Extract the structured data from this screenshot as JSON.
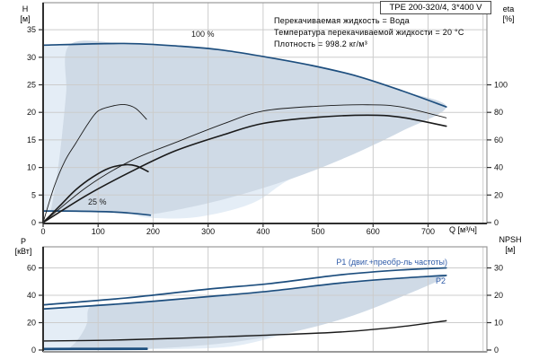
{
  "title_box": {
    "label": "TPE 200-320/4, 3*400 V"
  },
  "info_lines": [
    "Перекачиваемая жидкость = Вода",
    "Температура перекачиваемой жидкости = 20 °C",
    "Плотность = 998.2 кг/м³"
  ],
  "colors": {
    "curve_blue": "#1d4e7e",
    "curve_black": "#1a1a1a",
    "label_blue": "#2f5ba8",
    "region_light": "#e4edf6",
    "region_dark": "#cfdae6",
    "grid": "#cccccc",
    "axis_dark": "#2f2f2f",
    "axis_gray": "#9a9a9a",
    "tick_text": "#111111"
  },
  "chart_data": [
    {
      "type": "line",
      "name": "qh-eta-chart",
      "xlabel": "Q [м³/ч]",
      "xlim": [
        0,
        807
      ],
      "x_ticks": [
        0,
        100,
        200,
        300,
        400,
        500,
        600,
        700
      ],
      "x_grid": [
        100,
        200,
        300,
        400,
        500,
        600,
        700,
        800
      ],
      "left_axis": {
        "label_top": "H",
        "label_unit": "[м]",
        "ticks": [
          0,
          5,
          10,
          15,
          20,
          25,
          30,
          35
        ],
        "lim": [
          0,
          40
        ]
      },
      "right_axis": {
        "label_top": "eta",
        "label_unit": "[%]",
        "ticks": [
          0,
          20,
          40,
          60,
          80,
          100
        ],
        "lim": [
          0,
          160
        ]
      },
      "series": [
        {
          "name": "head-100pct",
          "label": "100 %",
          "axis": "left",
          "style": "blue",
          "width": 1.7,
          "points": [
            [
              0,
              32.2
            ],
            [
              147,
              32.5
            ],
            [
              250,
              32.0
            ],
            [
              326,
              31.3
            ],
            [
              408,
              30.0
            ],
            [
              489,
              28.5
            ],
            [
              570,
              26.6
            ],
            [
              653,
              23.9
            ],
            [
              733,
              21.0
            ]
          ]
        },
        {
          "name": "head-25pct",
          "label": "25 %",
          "axis": "left",
          "style": "blue",
          "width": 1.7,
          "points": [
            [
              0,
              2.1
            ],
            [
              60,
              2.08
            ],
            [
              120,
              1.95
            ],
            [
              160,
              1.7
            ],
            [
              195,
              1.35
            ]
          ]
        },
        {
          "name": "eta-pump-100pct",
          "axis": "right",
          "style": "black",
          "width": 0.9,
          "points": [
            [
              0,
              0
            ],
            [
              80,
              26
            ],
            [
              160,
              45
            ],
            [
              240,
              58
            ],
            [
              330,
              72
            ],
            [
              400,
              81
            ],
            [
              500,
              84.5
            ],
            [
              590,
              85.5
            ],
            [
              650,
              84
            ],
            [
              733,
              76
            ]
          ]
        },
        {
          "name": "eta-total-100pct",
          "axis": "right",
          "style": "black",
          "width": 1.6,
          "points": [
            [
              0,
              0
            ],
            [
              80,
              20
            ],
            [
              160,
              37
            ],
            [
              240,
              52
            ],
            [
              330,
              64
            ],
            [
              400,
              72
            ],
            [
              500,
              76.5
            ],
            [
              590,
              78
            ],
            [
              650,
              76.5
            ],
            [
              733,
              70
            ]
          ]
        },
        {
          "name": "eta-pump-25pct",
          "axis": "right",
          "style": "black",
          "width": 0.9,
          "points": [
            [
              0,
              0
            ],
            [
              20,
              26
            ],
            [
              40,
              45
            ],
            [
              60,
              58
            ],
            [
              82,
              72
            ],
            [
              100,
              81
            ],
            [
              125,
              84.5
            ],
            [
              147,
              85.7
            ],
            [
              168,
              83
            ],
            [
              188,
              75
            ]
          ]
        },
        {
          "name": "eta-total-25pct",
          "axis": "right",
          "style": "black",
          "width": 1.6,
          "points": [
            [
              0,
              0
            ],
            [
              30,
              12
            ],
            [
              60,
              24
            ],
            [
              90,
              33
            ],
            [
              120,
              39.5
            ],
            [
              150,
              42
            ],
            [
              170,
              41
            ],
            [
              191,
              37
            ]
          ]
        }
      ],
      "regions": [
        {
          "name": "envelope-light",
          "axis": "left",
          "points": [
            [
              0,
              32.2
            ],
            [
              147,
              32.5
            ],
            [
              250,
              32.0
            ],
            [
              326,
              31.3
            ],
            [
              408,
              30.0
            ],
            [
              489,
              28.5
            ],
            [
              570,
              26.6
            ],
            [
              653,
              23.9
            ],
            [
              733,
              21.0
            ],
            [
              650,
              16.5
            ],
            [
              550,
              11.8
            ],
            [
              450,
              7.9
            ],
            [
              380,
              3.5
            ],
            [
              280,
              1.0
            ],
            [
              191,
              0.9
            ],
            [
              150,
              1.8
            ],
            [
              100,
              2.0
            ],
            [
              50,
              2.08
            ],
            [
              0,
              2.1
            ]
          ]
        },
        {
          "name": "envelope-dark",
          "axis": "left",
          "points": [
            [
              14,
              2.05
            ],
            [
              20,
              5.4
            ],
            [
              28,
              10.5
            ],
            [
              35,
              16.5
            ],
            [
              42,
              23.7
            ],
            [
              49,
              32.3
            ],
            [
              147,
              32.5
            ],
            [
              250,
              32.0
            ],
            [
              326,
              31.3
            ],
            [
              408,
              30.0
            ],
            [
              489,
              28.5
            ],
            [
              570,
              26.6
            ],
            [
              653,
              23.9
            ],
            [
              733,
              21.0
            ],
            [
              650,
              16.5
            ],
            [
              550,
              11.8
            ],
            [
              450,
              7.9
            ],
            [
              350,
              4.8
            ],
            [
              270,
              2.85
            ],
            [
              191,
              1.45
            ],
            [
              150,
              1.8
            ],
            [
              100,
              2.0
            ],
            [
              50,
              2.05
            ]
          ]
        }
      ]
    },
    {
      "type": "line",
      "name": "power-npsh-chart",
      "xlabel": "",
      "xlim": [
        0,
        807
      ],
      "x_ticks": [],
      "x_grid": [
        100,
        200,
        300,
        400,
        500,
        600,
        700,
        800
      ],
      "left_axis": {
        "label_top": "P",
        "label_unit": "[кВт]",
        "ticks": [
          0,
          20,
          40,
          60
        ],
        "lim": [
          0,
          77
        ]
      },
      "right_axis": {
        "label_top": "NPSH",
        "label_unit": "[м]",
        "ticks": [
          0,
          10,
          20,
          30
        ],
        "lim": [
          0,
          38.5
        ]
      },
      "series": [
        {
          "name": "p1-100pct",
          "label": "P1 (двиг.+преобр-ль частоты)",
          "axis": "left",
          "style": "blue",
          "width": 1.7,
          "points": [
            [
              0,
              33
            ],
            [
              150,
              38
            ],
            [
              300,
              44.5
            ],
            [
              411,
              48.5
            ],
            [
              542,
              55
            ],
            [
              650,
              58.5
            ],
            [
              733,
              60
            ]
          ]
        },
        {
          "name": "p2-100pct",
          "label": "P2",
          "axis": "left",
          "style": "blue",
          "width": 1.7,
          "points": [
            [
              0,
              30
            ],
            [
              150,
              34
            ],
            [
              300,
              39
            ],
            [
              411,
              43
            ],
            [
              542,
              49
            ],
            [
              650,
              52.5
            ],
            [
              733,
              54.5
            ]
          ]
        },
        {
          "name": "p1-25pct",
          "axis": "left",
          "style": "blue",
          "width": 1.8,
          "points": [
            [
              0,
              1.05
            ],
            [
              100,
              1.15
            ],
            [
              189,
              1.25
            ]
          ]
        },
        {
          "name": "p2-25pct",
          "axis": "left",
          "style": "blue",
          "width": 1.8,
          "points": [
            [
              0,
              0.45
            ],
            [
              100,
              0.5
            ],
            [
              189,
              0.55
            ]
          ]
        },
        {
          "name": "npsh",
          "axis": "right",
          "style": "black",
          "width": 1.4,
          "points": [
            [
              0,
              3.3
            ],
            [
              120,
              3.6
            ],
            [
              248,
              4.3
            ],
            [
              400,
              5.4
            ],
            [
              542,
              6.6
            ],
            [
              650,
              8.5
            ],
            [
              733,
              10.7
            ]
          ]
        }
      ],
      "regions": [
        {
          "name": "envelope-light",
          "axis": "left",
          "points": [
            [
              0,
              30
            ],
            [
              150,
              34
            ],
            [
              300,
              39
            ],
            [
              411,
              43
            ],
            [
              542,
              49
            ],
            [
              650,
              52.5
            ],
            [
              733,
              54.5
            ],
            [
              650,
              38.7
            ],
            [
              550,
              23.4
            ],
            [
              450,
              12.8
            ],
            [
              350,
              3.0
            ],
            [
              250,
              0.8
            ],
            [
              150,
              0.6
            ],
            [
              0,
              0.45
            ]
          ]
        },
        {
          "name": "envelope-dark",
          "axis": "left",
          "points": [
            [
              45,
              0.5
            ],
            [
              60,
              6
            ],
            [
              72,
              13
            ],
            [
              80,
              20
            ],
            [
              88,
              32.3
            ],
            [
              150,
              34
            ],
            [
              300,
              39
            ],
            [
              411,
              43
            ],
            [
              542,
              49
            ],
            [
              650,
              52.5
            ],
            [
              733,
              54.5
            ],
            [
              650,
              38.7
            ],
            [
              550,
              23.4
            ],
            [
              450,
              12.8
            ],
            [
              350,
              6.0
            ],
            [
              270,
              2.8
            ],
            [
              191,
              1.0
            ],
            [
              150,
              0.8
            ],
            [
              90,
              0.6
            ],
            [
              45,
              0.5
            ]
          ]
        }
      ]
    }
  ]
}
